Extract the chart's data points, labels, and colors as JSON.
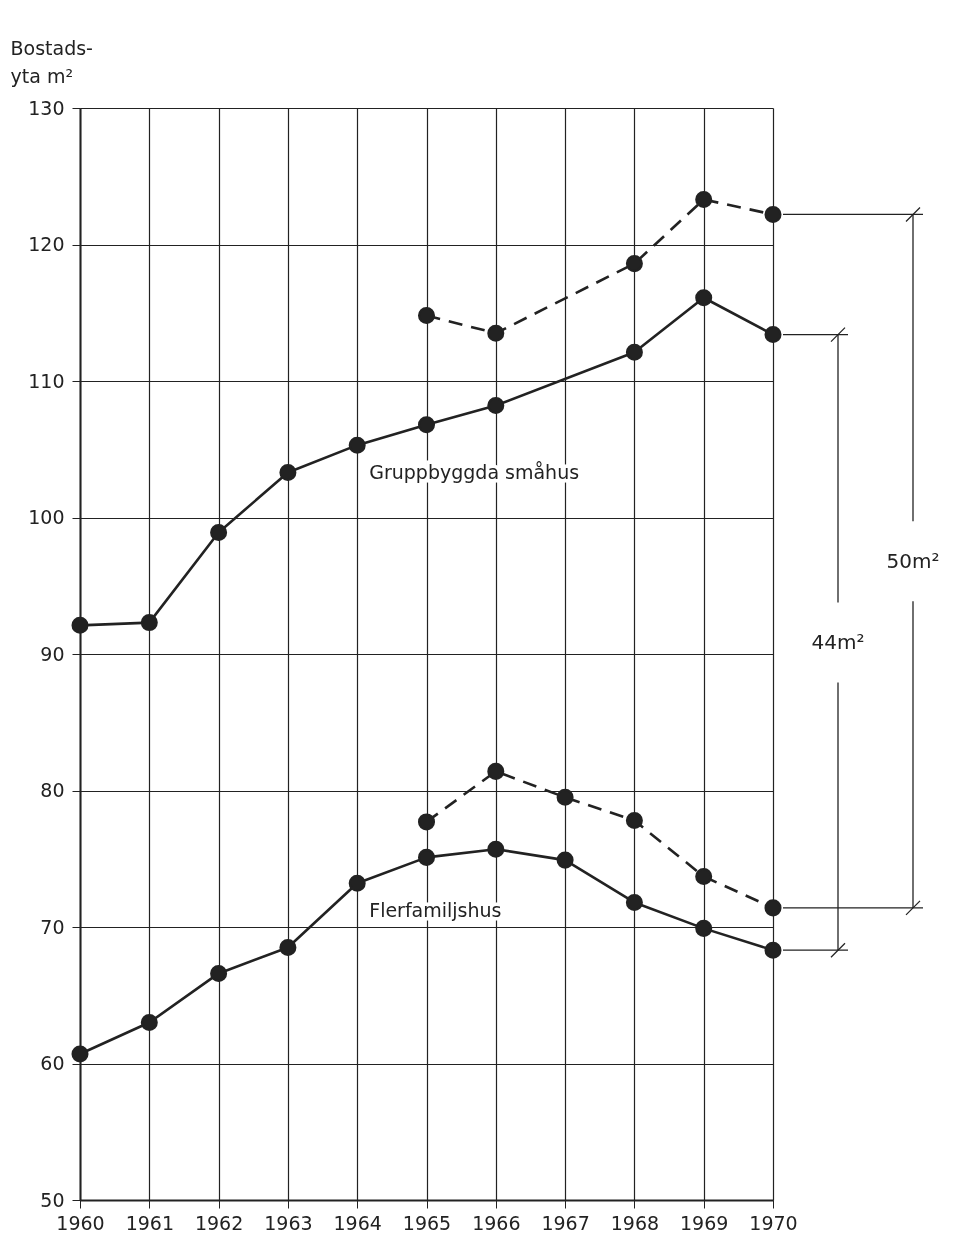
{
  "chart_data": {
    "type": "line",
    "ylabel": "Bostads- yta m²",
    "xlim": [
      1960,
      1970
    ],
    "xticks": [
      1960,
      1961,
      1962,
      1963,
      1964,
      1965,
      1966,
      1967,
      1968,
      1969,
      1970
    ],
    "ylim": [
      50,
      130
    ],
    "yticks": [
      50,
      60,
      70,
      80,
      90,
      100,
      110,
      120,
      130
    ],
    "grid": true,
    "marker": "circle",
    "series": [
      {
        "name": "Gruppbyggda småhus",
        "color": "#222222",
        "line_style": "solid",
        "x": [
          1960,
          1961,
          1962,
          1963,
          1964,
          1965,
          1966,
          1968,
          1969,
          1970
        ],
        "values": [
          92.1,
          92.3,
          98.9,
          103.3,
          105.3,
          106.8,
          108.2,
          112.1,
          116.1,
          113.4
        ]
      },
      {
        "color": "#222222",
        "line_style": "dashed",
        "x": [
          1965,
          1966,
          1968,
          1969,
          1970
        ],
        "values": [
          114.8,
          113.5,
          118.6,
          123.3,
          122.2
        ]
      },
      {
        "name": "Flerfamiljshus",
        "color": "#222222",
        "line_style": "solid",
        "x": [
          1960,
          1961,
          1962,
          1963,
          1964,
          1965,
          1966,
          1967,
          1968,
          1969,
          1970
        ],
        "values": [
          60.7,
          63.0,
          66.6,
          68.5,
          73.2,
          75.1,
          75.7,
          74.9,
          71.8,
          69.9,
          68.3
        ]
      },
      {
        "color": "#222222",
        "line_style": "dashed",
        "x": [
          1965,
          1966,
          1967,
          1968,
          1969,
          1970
        ],
        "values": [
          77.7,
          81.4,
          79.5,
          77.8,
          73.7,
          71.4
        ]
      }
    ],
    "annotations": [
      "44m²",
      "50m²"
    ]
  }
}
